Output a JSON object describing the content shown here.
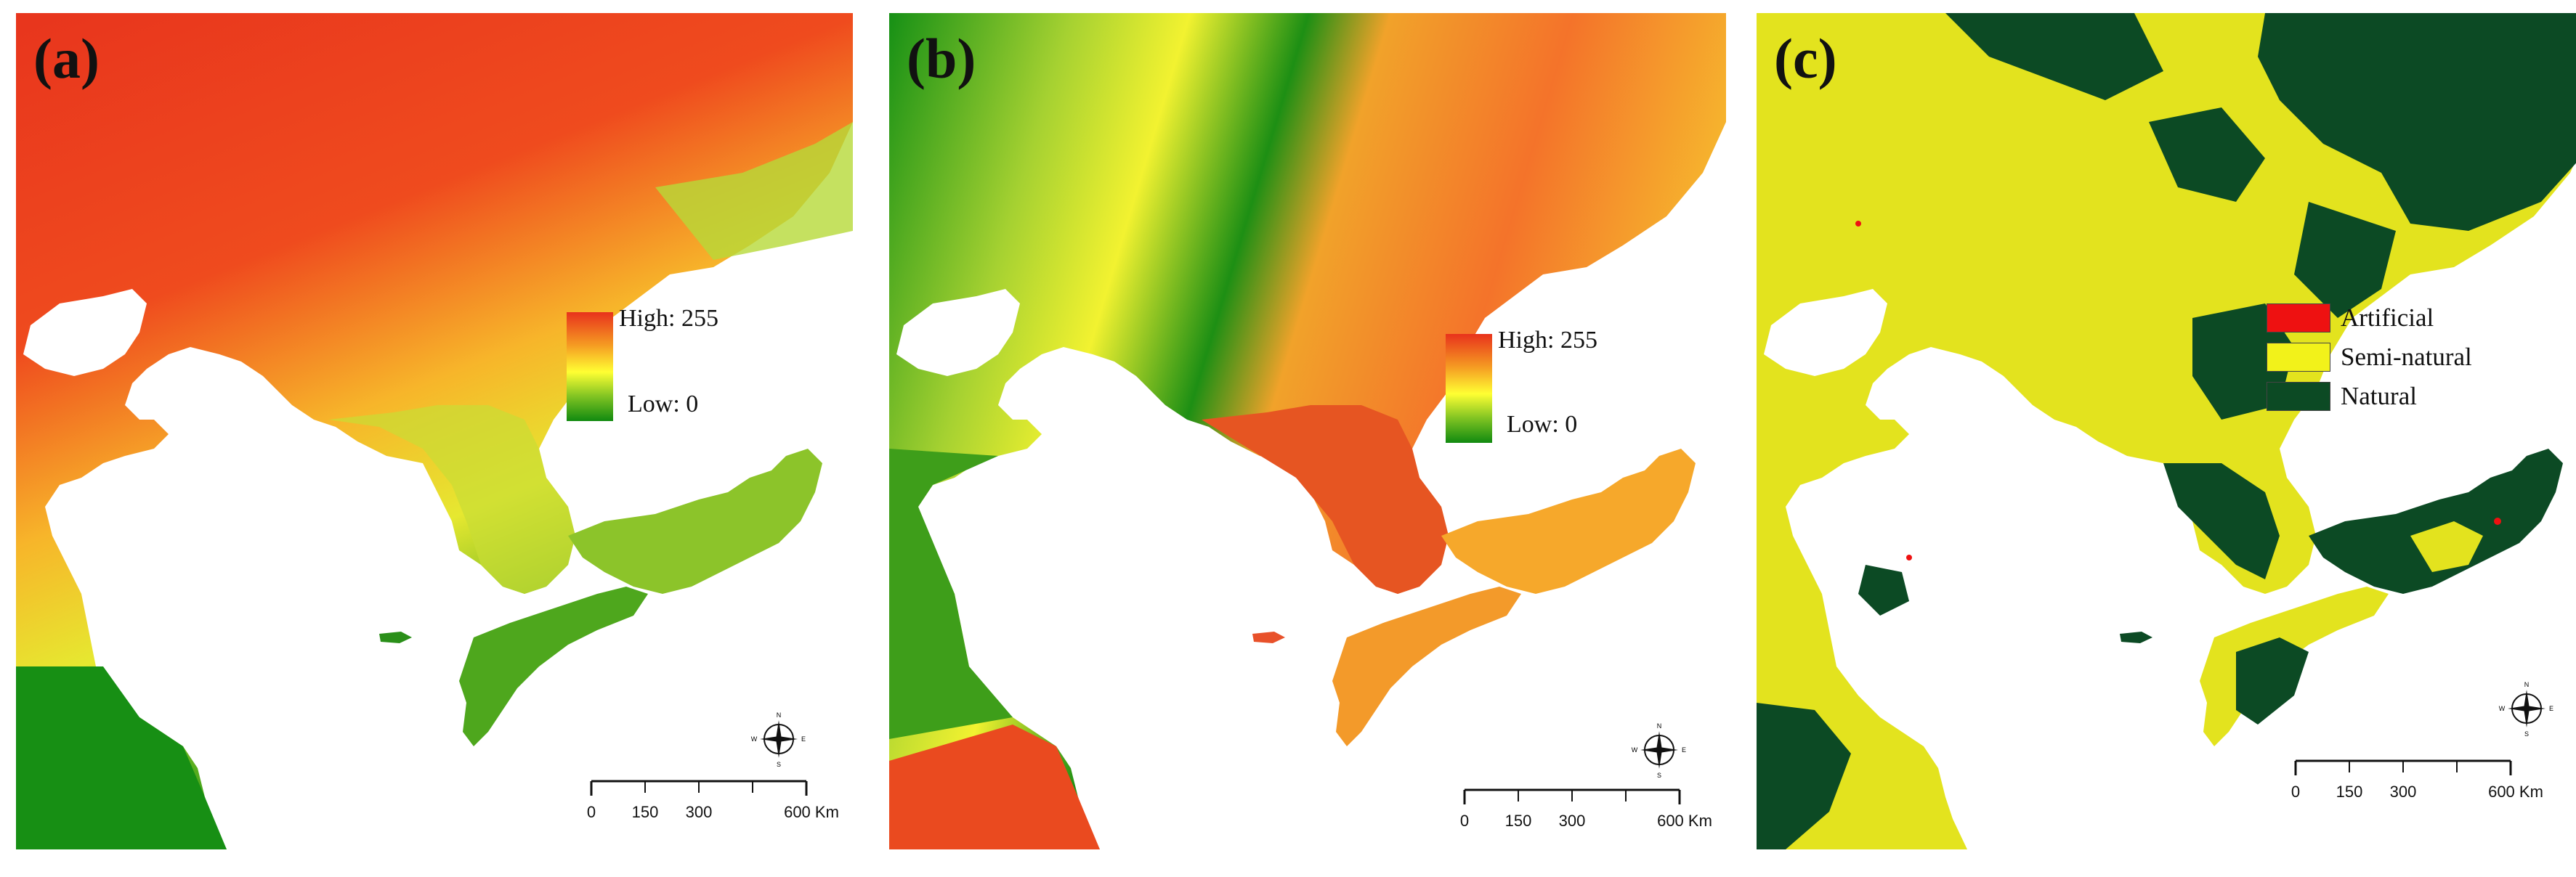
{
  "panels": [
    {
      "label": "(a)",
      "legend": {
        "high": "High: 255",
        "low": "Low: 0"
      }
    },
    {
      "label": "(b)",
      "legend": {
        "high": "High: 255",
        "low": "Low: 0"
      }
    },
    {
      "label": "(c)",
      "legend_categories": [
        {
          "label": "Artificial",
          "color": "#ee1111"
        },
        {
          "label": "Semi-natural",
          "color": "#f2f21a"
        },
        {
          "label": "Natural",
          "color": "#0c4a24"
        }
      ]
    }
  ],
  "scale_bar": {
    "ticks": [
      "0",
      "150",
      "300",
      "600 Km"
    ]
  },
  "compass": {
    "icon": "north-arrow-compass-rose",
    "letters": [
      "N",
      "E",
      "S",
      "W"
    ]
  },
  "colors": {
    "ramp_high": "#e8321c",
    "ramp_mid": "#ffff33",
    "ramp_low": "#118a10",
    "sea": "#ffffff"
  }
}
